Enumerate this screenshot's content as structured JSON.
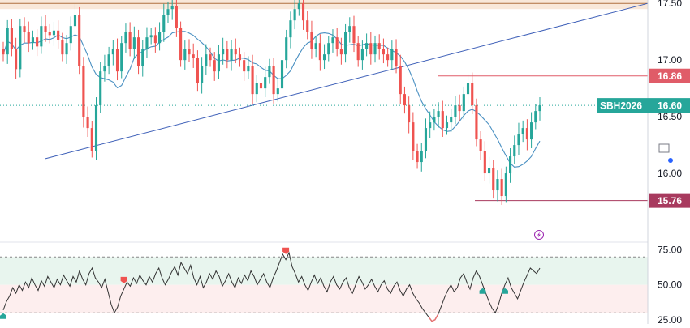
{
  "chart_data": [
    {
      "type": "candlestick",
      "symbol_label": "SBH2026",
      "last_price": "16.60",
      "y_ticks": [
        "17.50",
        "17.00",
        "16.50",
        "16.00"
      ],
      "ylim": [
        15.4,
        17.53
      ],
      "levels": [
        {
          "label": "16.86",
          "value": 16.86,
          "color": "#e05c68"
        },
        {
          "label": "15.76",
          "value": 15.76,
          "color": "#a83a5e"
        }
      ],
      "resistance_band": [
        17.45,
        17.55
      ],
      "trendline": {
        "from": [
          0,
          16.13
        ],
        "to": [
          132,
          17.5
        ]
      },
      "close": [
        17.05,
        17.28,
        17.1,
        16.92,
        17.3,
        17.25,
        17.15,
        17.2,
        17.12,
        17.3,
        17.25,
        17.22,
        17.26,
        17.18,
        17.05,
        17.15,
        17.3,
        17.4,
        16.95,
        16.5,
        16.4,
        16.2,
        16.6,
        16.9,
        16.95,
        17.05,
        17.1,
        16.9,
        17.15,
        17.25,
        17.1,
        17.2,
        16.95,
        17.1,
        17.2,
        17.22,
        17.15,
        17.25,
        17.4,
        17.45,
        17.48,
        17.28,
        17.0,
        17.1,
        17.05,
        17.02,
        16.8,
        16.95,
        17.05,
        17.0,
        16.9,
        17.05,
        17.1,
        17.0,
        17.1,
        17.05,
        17.0,
        16.9,
        16.95,
        16.7,
        16.8,
        16.75,
        16.85,
        16.95,
        16.7,
        16.75,
        17.0,
        17.2,
        17.35,
        17.45,
        17.5,
        17.35,
        17.25,
        17.1,
        17.15,
        17.0,
        17.05,
        17.15,
        17.2,
        17.1,
        17.05,
        17.25,
        17.3,
        17.15,
        17.0,
        17.1,
        17.15,
        17.05,
        17.15,
        17.1,
        17.05,
        17.0,
        17.1,
        16.95,
        16.7,
        16.6,
        16.45,
        16.2,
        16.1,
        16.2,
        16.4,
        16.45,
        16.5,
        16.55,
        16.4,
        16.45,
        16.5,
        16.6,
        16.55,
        16.7,
        16.8,
        16.6,
        16.3,
        16.2,
        16.0,
        16.05,
        15.85,
        15.95,
        15.8,
        16.0,
        16.15,
        16.25,
        16.35,
        16.4,
        16.3,
        16.45,
        16.55,
        16.6
      ],
      "rsi": {
        "y_ticks": [
          "75.00",
          "50.00",
          "25.00"
        ],
        "overbought": 70,
        "oversold": 30,
        "ylim": [
          22,
          80
        ],
        "values": [
          32,
          38,
          42,
          48,
          44,
          50,
          46,
          52,
          48,
          55,
          50,
          46,
          53,
          49,
          56,
          52,
          48,
          54,
          50,
          57,
          53,
          49,
          56,
          52,
          60,
          54,
          50,
          58,
          62,
          55,
          52,
          48,
          54,
          45,
          36,
          30,
          34,
          42,
          47,
          52,
          49,
          55,
          51,
          57,
          53,
          50,
          56,
          52,
          58,
          62,
          55,
          50,
          54,
          59,
          63,
          57,
          66,
          62,
          58,
          64,
          55,
          50,
          56,
          48,
          52,
          58,
          54,
          60,
          56,
          49,
          53,
          58,
          52,
          48,
          55,
          51,
          57,
          53,
          60,
          56,
          50,
          54,
          58,
          52,
          48,
          55,
          60,
          66,
          72,
          68,
          73,
          63,
          58,
          52,
          56,
          50,
          46,
          52,
          57,
          51,
          55,
          49,
          45,
          52,
          56,
          50,
          47,
          52,
          55,
          48,
          44,
          50,
          56,
          52,
          47,
          50,
          54,
          49,
          45,
          50,
          53,
          47,
          44,
          49,
          52,
          46,
          42,
          47,
          50,
          44,
          40,
          37,
          33,
          30,
          27,
          24,
          25,
          29,
          35,
          41,
          46,
          50,
          45,
          48,
          55,
          58,
          52,
          47,
          55,
          60,
          56,
          50,
          44,
          38,
          33,
          30,
          36,
          44,
          50,
          55,
          48,
          44,
          40,
          46,
          52,
          57,
          62,
          60,
          58,
          62
        ],
        "signals": [
          {
            "type": "buy",
            "index": 0
          },
          {
            "type": "sell",
            "index": 38
          },
          {
            "type": "sell",
            "index": 89
          },
          {
            "type": "buy",
            "index": 151
          },
          {
            "type": "buy",
            "index": 158
          }
        ]
      }
    }
  ],
  "icons": {
    "lightning": "lightning-bolt-icon"
  }
}
